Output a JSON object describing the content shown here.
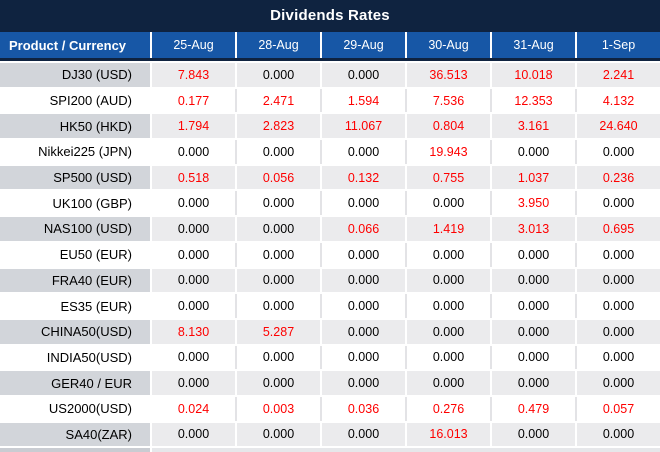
{
  "title": "Dividends Rates",
  "colors": {
    "title_bar_navy": "#0F2340",
    "header_blue": "#1757A6",
    "value_red": "#FE0000",
    "striped_row_label_gray": "#D2D5DA",
    "striped_row_value_gray": "#EBEBED",
    "row_white": "#FFFFFF"
  },
  "table": {
    "product_header": "Product / Currency",
    "date_headers": [
      "25-Aug",
      "28-Aug",
      "29-Aug",
      "30-Aug",
      "31-Aug",
      "1-Sep"
    ],
    "rows": [
      {
        "product": "DJ30 (USD)",
        "values": [
          "7.843",
          "0.000",
          "0.000",
          "36.513",
          "10.018",
          "2.241"
        ]
      },
      {
        "product": "SPI200 (AUD)",
        "values": [
          "0.177",
          "2.471",
          "1.594",
          "7.536",
          "12.353",
          "4.132"
        ]
      },
      {
        "product": "HK50 (HKD)",
        "values": [
          "1.794",
          "2.823",
          "11.067",
          "0.804",
          "3.161",
          "24.640"
        ]
      },
      {
        "product": "Nikkei225 (JPN)",
        "values": [
          "0.000",
          "0.000",
          "0.000",
          "19.943",
          "0.000",
          "0.000"
        ]
      },
      {
        "product": "SP500 (USD)",
        "values": [
          "0.518",
          "0.056",
          "0.132",
          "0.755",
          "1.037",
          "0.236"
        ]
      },
      {
        "product": "UK100 (GBP)",
        "values": [
          "0.000",
          "0.000",
          "0.000",
          "0.000",
          "3.950",
          "0.000"
        ]
      },
      {
        "product": "NAS100 (USD)",
        "values": [
          "0.000",
          "0.000",
          "0.066",
          "1.419",
          "3.013",
          "0.695"
        ]
      },
      {
        "product": "EU50 (EUR)",
        "values": [
          "0.000",
          "0.000",
          "0.000",
          "0.000",
          "0.000",
          "0.000"
        ]
      },
      {
        "product": "FRA40 (EUR)",
        "values": [
          "0.000",
          "0.000",
          "0.000",
          "0.000",
          "0.000",
          "0.000"
        ]
      },
      {
        "product": "ES35 (EUR)",
        "values": [
          "0.000",
          "0.000",
          "0.000",
          "0.000",
          "0.000",
          "0.000"
        ]
      },
      {
        "product": "CHINA50(USD)",
        "values": [
          "8.130",
          "5.287",
          "0.000",
          "0.000",
          "0.000",
          "0.000"
        ]
      },
      {
        "product": "INDIA50(USD)",
        "values": [
          "0.000",
          "0.000",
          "0.000",
          "0.000",
          "0.000",
          "0.000"
        ]
      },
      {
        "product": "GER40 / EUR",
        "values": [
          "0.000",
          "0.000",
          "0.000",
          "0.000",
          "0.000",
          "0.000"
        ]
      },
      {
        "product": "US2000(USD)",
        "values": [
          "0.024",
          "0.003",
          "0.036",
          "0.276",
          "0.479",
          "0.057"
        ]
      },
      {
        "product": "SA40(ZAR)",
        "values": [
          "0.000",
          "0.000",
          "0.000",
          "16.013",
          "0.000",
          "0.000"
        ]
      }
    ]
  }
}
